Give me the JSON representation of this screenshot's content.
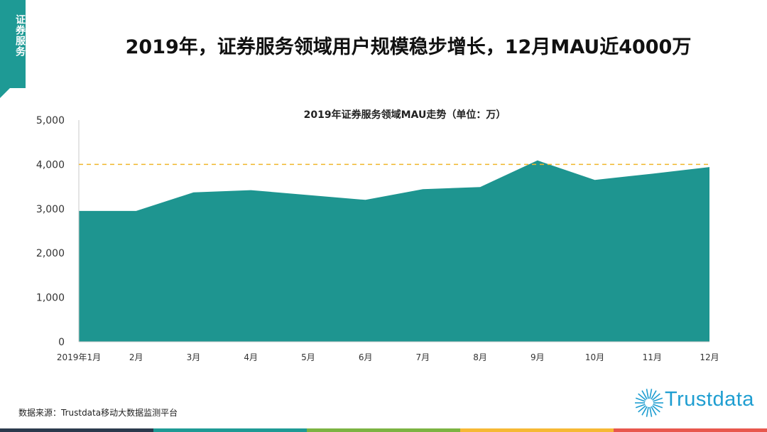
{
  "side_tag": "证券服务",
  "page_title": "2019年，证券服务领域用户规模稳步增长，12月MAU近4000万",
  "source_note": "数据来源：Trustdata移动大数据监测平台",
  "brand": "Trustdata",
  "colors": {
    "area": "#1e9590",
    "accent": "#1e9a95",
    "reference_line": "#f0b62a",
    "brand": "#1f9ed1",
    "footer": [
      "#2b3a4d",
      "#1e9a95",
      "#7cb342",
      "#f6b934",
      "#e8574d"
    ]
  },
  "chart_data": {
    "type": "area",
    "title": "2019年证券服务领域MAU走势（单位：万）",
    "categories": [
      "2019年1月",
      "2月",
      "3月",
      "4月",
      "5月",
      "6月",
      "7月",
      "8月",
      "9月",
      "10月",
      "11月",
      "12月"
    ],
    "series": [
      {
        "values": [
          2950,
          2950,
          3370,
          3420,
          3310,
          3200,
          3440,
          3490,
          4090,
          3650,
          3790,
          3940
        ]
      }
    ],
    "y_ticks": [
      "0",
      "1,000",
      "2,000",
      "3,000",
      "4,000",
      "5,000"
    ],
    "ylim": [
      0,
      5000
    ],
    "reference_line": 4000,
    "grid": false,
    "xlabel": "",
    "ylabel": ""
  }
}
